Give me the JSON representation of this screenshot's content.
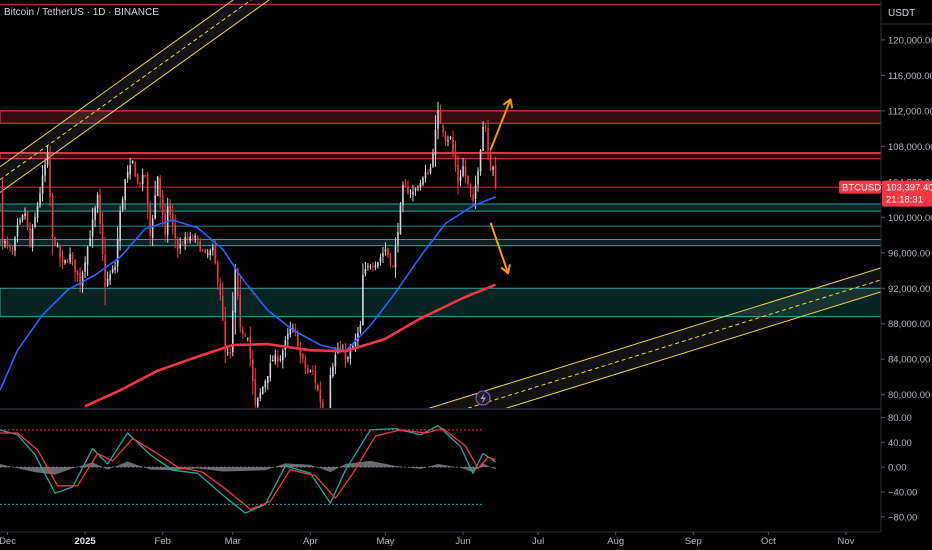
{
  "header": {
    "symbol_title": "Bitcoin / TetherUS · 1D · BINANCE",
    "currency": "USDT"
  },
  "price_badge": {
    "ticker": "BTCUSDT",
    "price": "103,397.40",
    "countdown": "21:18:31",
    "color": "#f23645"
  },
  "colors": {
    "background": "#000000",
    "candle_up": "#d1d4dc",
    "candle_down": "#f23645",
    "ma_fast": "#2962ff",
    "ma_slow": "#f23645",
    "resistance_zone": "#f23645",
    "support_zone": "#26a69a",
    "channel": "#e6d64a",
    "arrow": "#ff9800",
    "stoch_k": "#26a69a",
    "stoch_d": "#f23645",
    "histogram": "#9598a1"
  },
  "chart_data": [
    {
      "type": "candlestick",
      "x_axis": {
        "labels": [
          "Dec",
          "2025",
          "Feb",
          "Mar",
          "Apr",
          "May",
          "Jun",
          "Jul",
          "Aug",
          "Sep",
          "Oct",
          "Nov"
        ],
        "bold_labels": [
          "2025"
        ],
        "start": "2024-11-28",
        "end": "2025-11-15"
      },
      "y_axis": {
        "ticks": [
          80000,
          84000,
          88000,
          92000,
          96000,
          100000,
          104000,
          108000,
          112000,
          116000,
          120000
        ],
        "tick_labels": [
          "80,000.00",
          "84,000.00",
          "88,000.00",
          "92,000.00",
          "96,000.00",
          "100,000.00",
          "104,000.00",
          "108,000.00",
          "112,000.00",
          "116,000.00",
          "120,000.00"
        ],
        "range": [
          78500,
          124500
        ]
      },
      "last_price": 103397.4,
      "series": [
        {
          "kind": "close_path",
          "points": [
            [
              "2024-11-29",
              97500
            ],
            [
              "2024-12-03",
              95900
            ],
            [
              "2024-12-05",
              98800
            ],
            [
              "2024-12-08",
              100500
            ],
            [
              "2024-12-10",
              96800
            ],
            [
              "2024-12-13",
              101400
            ],
            [
              "2024-12-16",
              105800
            ],
            [
              "2024-12-17",
              106900
            ],
            [
              "2024-12-19",
              97500
            ],
            [
              "2024-12-20",
              97200
            ],
            [
              "2024-12-23",
              94600
            ],
            [
              "2024-12-26",
              95700
            ],
            [
              "2024-12-30",
              92600
            ],
            [
              "2025-01-03",
              98000
            ],
            [
              "2025-01-06",
              102200
            ],
            [
              "2025-01-09",
              92400
            ],
            [
              "2025-01-13",
              94500
            ],
            [
              "2025-01-15",
              100500
            ],
            [
              "2025-01-17",
              104100
            ],
            [
              "2025-01-20",
              106200
            ],
            [
              "2025-01-22",
              103700
            ],
            [
              "2025-01-25",
              104700
            ],
            [
              "2025-01-27",
              97900
            ],
            [
              "2025-01-30",
              104700
            ],
            [
              "2025-02-02",
              97700
            ],
            [
              "2025-02-03",
              101400
            ],
            [
              "2025-02-07",
              96500
            ],
            [
              "2025-02-10",
              97400
            ],
            [
              "2025-02-14",
              97600
            ],
            [
              "2025-02-18",
              95600
            ],
            [
              "2025-02-21",
              96200
            ],
            [
              "2025-02-24",
              91500
            ],
            [
              "2025-02-26",
              84700
            ],
            [
              "2025-02-28",
              84300
            ],
            [
              "2025-03-02",
              94200
            ],
            [
              "2025-03-04",
              87200
            ],
            [
              "2025-03-07",
              86800
            ],
            [
              "2025-03-10",
              78600
            ],
            [
              "2025-03-13",
              80900
            ],
            [
              "2025-03-17",
              84000
            ],
            [
              "2025-03-20",
              84200
            ],
            [
              "2025-03-24",
              87400
            ],
            [
              "2025-03-26",
              86900
            ],
            [
              "2025-03-28",
              84300
            ],
            [
              "2025-03-31",
              82500
            ],
            [
              "2025-04-02",
              82500
            ],
            [
              "2025-04-06",
              78300
            ],
            [
              "2025-04-08",
              76300
            ],
            [
              "2025-04-09",
              82600
            ],
            [
              "2025-04-12",
              85300
            ],
            [
              "2025-04-16",
              84000
            ],
            [
              "2025-04-21",
              87500
            ],
            [
              "2025-04-22",
              93400
            ],
            [
              "2025-04-25",
              94700
            ],
            [
              "2025-04-28",
              95100
            ],
            [
              "2025-05-01",
              96500
            ],
            [
              "2025-05-04",
              94300
            ],
            [
              "2025-05-08",
              103200
            ],
            [
              "2025-05-12",
              102800
            ],
            [
              "2025-05-14",
              103500
            ],
            [
              "2025-05-19",
              105600
            ],
            [
              "2025-05-21",
              109600
            ],
            [
              "2025-05-22",
              111700
            ],
            [
              "2025-05-25",
              109000
            ],
            [
              "2025-05-27",
              108900
            ],
            [
              "2025-05-30",
              104000
            ],
            [
              "2025-06-01",
              105700
            ],
            [
              "2025-06-05",
              101500
            ],
            [
              "2025-06-07",
              105600
            ],
            [
              "2025-06-09",
              110300
            ],
            [
              "2025-06-10",
              110200
            ],
            [
              "2025-06-12",
              105600
            ],
            [
              "2025-06-13",
              105900
            ],
            [
              "2025-06-14",
              103397
            ]
          ]
        },
        {
          "name": "",
          "kind": "moving_average_fast",
          "points": [
            [
              "2024-11-28",
              80500
            ],
            [
              "2024-12-05",
              85000
            ],
            [
              "2024-12-15",
              89000
            ],
            [
              "2024-12-25",
              91800
            ],
            [
              "2025-01-05",
              93500
            ],
            [
              "2025-01-15",
              95500
            ],
            [
              "2025-01-25",
              98700
            ],
            [
              "2025-02-05",
              99700
            ],
            [
              "2025-02-15",
              98800
            ],
            [
              "2025-02-25",
              96400
            ],
            [
              "2025-03-05",
              93000
            ],
            [
              "2025-03-15",
              89500
            ],
            [
              "2025-03-25",
              87300
            ],
            [
              "2025-04-05",
              85600
            ],
            [
              "2025-04-15",
              84900
            ],
            [
              "2025-04-25",
              87800
            ],
            [
              "2025-05-05",
              91500
            ],
            [
              "2025-05-15",
              95600
            ],
            [
              "2025-05-25",
              99300
            ],
            [
              "2025-06-05",
              101300
            ],
            [
              "2025-06-14",
              102300
            ]
          ]
        },
        {
          "name": "",
          "kind": "moving_average_slow",
          "points": [
            [
              "2025-01-01",
              78700
            ],
            [
              "2025-01-15",
              80500
            ],
            [
              "2025-01-30",
              82700
            ],
            [
              "2025-02-15",
              84300
            ],
            [
              "2025-03-01",
              85600
            ],
            [
              "2025-03-15",
              85700
            ],
            [
              "2025-04-01",
              85000
            ],
            [
              "2025-04-15",
              84900
            ],
            [
              "2025-05-01",
              86300
            ],
            [
              "2025-05-15",
              88600
            ],
            [
              "2025-06-01",
              90900
            ],
            [
              "2025-06-14",
              92400
            ]
          ]
        }
      ],
      "zones": [
        {
          "kind": "resistance",
          "from": 110600,
          "to": 112000
        },
        {
          "kind": "resistance",
          "from": 106600,
          "to": 107300
        },
        {
          "kind": "support",
          "from": 100700,
          "to": 101500
        },
        {
          "kind": "support",
          "from": 96800,
          "to": 97500
        },
        {
          "kind": "support",
          "from": 88800,
          "to": 92000
        }
      ],
      "horizontal_lines": [
        {
          "kind": "resistance",
          "price": 124000
        },
        {
          "kind": "resistance",
          "price": 112000
        },
        {
          "kind": "resistance",
          "price": 107200
        },
        {
          "kind": "resistance",
          "price": 103397
        },
        {
          "kind": "support",
          "price": 101500
        },
        {
          "kind": "support",
          "price": 99000
        }
      ],
      "channels": [
        {
          "p1": [
            "2024-11-28",
            102800
          ],
          "p2": [
            "2025-03-15",
            124400
          ],
          "width": 2900
        },
        {
          "p1": [
            "2025-06-14",
            78100
          ],
          "p2": [
            "2025-11-15",
            91600
          ],
          "width": 2700
        }
      ],
      "arrows": [
        {
          "direction": "up",
          "from": [
            "2025-06-12",
            107600
          ],
          "to": [
            "2025-06-20",
            113300
          ]
        },
        {
          "direction": "down",
          "from": [
            "2025-06-12",
            99400
          ],
          "to": [
            "2025-06-19",
            93700
          ]
        }
      ]
    },
    {
      "type": "line",
      "name": "",
      "y_axis": {
        "ticks": [
          80,
          40,
          0,
          -40,
          -80
        ],
        "tick_labels": [
          "80.00",
          "40.00",
          "0.00",
          "−40.00",
          "−80.00"
        ],
        "range": [
          -98,
          92
        ]
      },
      "levels": [
        {
          "kind": "overbought",
          "value": 60
        },
        {
          "kind": "zero",
          "value": 0
        },
        {
          "kind": "oversold",
          "value": -60
        }
      ],
      "series": [
        {
          "name": "",
          "kind": "k",
          "points": [
            [
              "2024-11-28",
              60
            ],
            [
              "2024-12-05",
              52
            ],
            [
              "2024-12-12",
              20
            ],
            [
              "2024-12-20",
              -42
            ],
            [
              "2024-12-27",
              -32
            ],
            [
              "2025-01-04",
              30
            ],
            [
              "2025-01-10",
              5
            ],
            [
              "2025-01-18",
              55
            ],
            [
              "2025-01-27",
              20
            ],
            [
              "2025-02-05",
              -5
            ],
            [
              "2025-02-15",
              -10
            ],
            [
              "2025-02-25",
              -45
            ],
            [
              "2025-03-06",
              -74
            ],
            [
              "2025-03-14",
              -60
            ],
            [
              "2025-03-22",
              2
            ],
            [
              "2025-04-01",
              -10
            ],
            [
              "2025-04-09",
              -58
            ],
            [
              "2025-04-15",
              -5
            ],
            [
              "2025-04-25",
              60
            ],
            [
              "2025-05-05",
              62
            ],
            [
              "2025-05-15",
              52
            ],
            [
              "2025-05-22",
              67
            ],
            [
              "2025-05-31",
              33
            ],
            [
              "2025-06-05",
              -10
            ],
            [
              "2025-06-09",
              22
            ],
            [
              "2025-06-12",
              14
            ],
            [
              "2025-06-14",
              8
            ]
          ]
        },
        {
          "name": "",
          "kind": "d",
          "points": [
            [
              "2024-11-28",
              55
            ],
            [
              "2024-12-05",
              55
            ],
            [
              "2024-12-13",
              28
            ],
            [
              "2024-12-21",
              -30
            ],
            [
              "2024-12-29",
              -30
            ],
            [
              "2025-01-06",
              22
            ],
            [
              "2025-01-12",
              10
            ],
            [
              "2025-01-20",
              46
            ],
            [
              "2025-01-29",
              24
            ],
            [
              "2025-02-07",
              0
            ],
            [
              "2025-02-17",
              -8
            ],
            [
              "2025-02-27",
              -38
            ],
            [
              "2025-03-08",
              -68
            ],
            [
              "2025-03-16",
              -55
            ],
            [
              "2025-03-24",
              -4
            ],
            [
              "2025-04-03",
              -14
            ],
            [
              "2025-04-11",
              -50
            ],
            [
              "2025-04-18",
              -10
            ],
            [
              "2025-04-27",
              50
            ],
            [
              "2025-05-07",
              60
            ],
            [
              "2025-05-17",
              55
            ],
            [
              "2025-05-24",
              62
            ],
            [
              "2025-06-02",
              34
            ],
            [
              "2025-06-07",
              -2
            ],
            [
              "2025-06-11",
              16
            ],
            [
              "2025-06-14",
              12
            ]
          ]
        },
        {
          "name": "",
          "kind": "histogram",
          "points": [
            [
              "2024-11-28",
              5
            ],
            [
              "2024-12-05",
              -2
            ],
            [
              "2024-12-12",
              -8
            ],
            [
              "2024-12-20",
              -12
            ],
            [
              "2024-12-27",
              -2
            ],
            [
              "2025-01-04",
              8
            ],
            [
              "2025-01-10",
              -4
            ],
            [
              "2025-01-18",
              9
            ],
            [
              "2025-01-27",
              -4
            ],
            [
              "2025-02-05",
              -5
            ],
            [
              "2025-02-15",
              -2
            ],
            [
              "2025-02-25",
              -7
            ],
            [
              "2025-03-06",
              -6
            ],
            [
              "2025-03-14",
              -5
            ],
            [
              "2025-03-22",
              6
            ],
            [
              "2025-04-01",
              4
            ],
            [
              "2025-04-09",
              -8
            ],
            [
              "2025-04-15",
              5
            ],
            [
              "2025-04-25",
              10
            ],
            [
              "2025-05-05",
              2
            ],
            [
              "2025-05-15",
              -3
            ],
            [
              "2025-05-22",
              5
            ],
            [
              "2025-05-31",
              -1
            ],
            [
              "2025-06-05",
              -8
            ],
            [
              "2025-06-09",
              6
            ],
            [
              "2025-06-14",
              -4
            ]
          ]
        }
      ]
    }
  ]
}
